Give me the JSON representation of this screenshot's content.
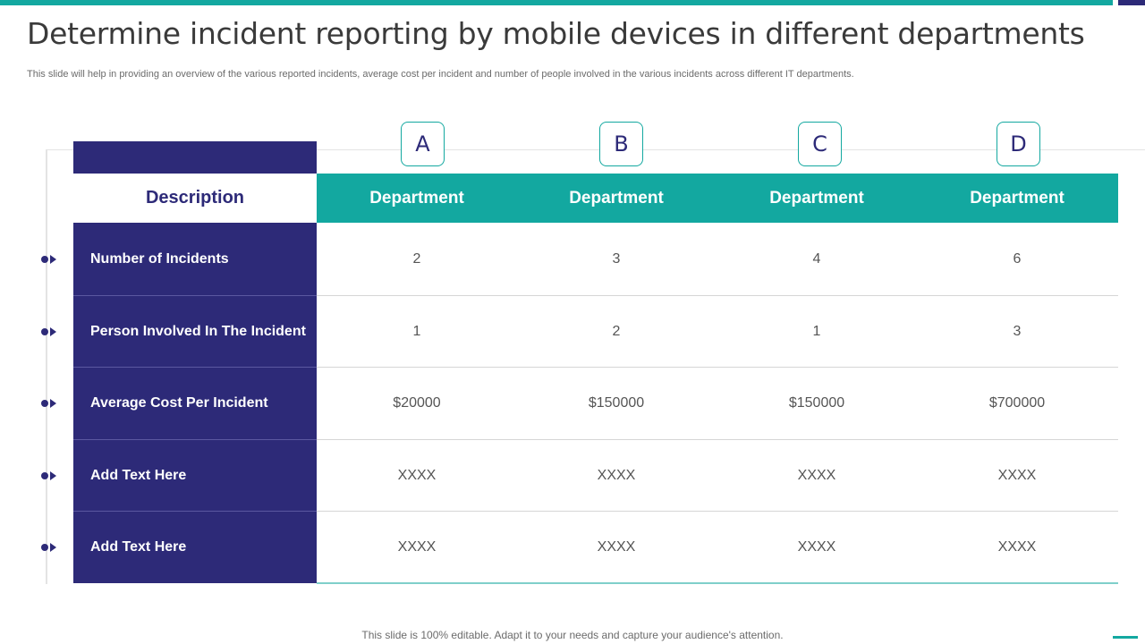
{
  "title": "Determine incident reporting by mobile devices in different departments",
  "subtitle": "This slide will help in providing an overview  of the various reported incidents, average cost per incident and  number of people involved in the various incidents across different IT departments.",
  "colors": {
    "navy": "#2d2a78",
    "teal": "#13a8a0"
  },
  "table": {
    "description_header": "Description",
    "departments": [
      {
        "letter": "A",
        "label": "Department"
      },
      {
        "letter": "B",
        "label": "Department"
      },
      {
        "letter": "C",
        "label": "Department"
      },
      {
        "letter": "D",
        "label": "Department"
      }
    ],
    "rows": [
      {
        "label": "Number of Incidents",
        "values": [
          "2",
          "3",
          "4",
          "6"
        ]
      },
      {
        "label": "Person  Involved In The Incident",
        "values": [
          "1",
          "2",
          "1",
          "3"
        ]
      },
      {
        "label": "Average Cost  Per Incident",
        "values": [
          "$20000",
          "$150000",
          "$150000",
          "$700000"
        ]
      },
      {
        "label": "Add Text Here",
        "values": [
          "XXXX",
          "XXXX",
          "XXXX",
          "XXXX"
        ]
      },
      {
        "label": "Add Text Here",
        "values": [
          "XXXX",
          "XXXX",
          "XXXX",
          "XXXX"
        ]
      }
    ]
  },
  "footer": "This slide is 100% editable. Adapt it to your needs and capture your audience's attention."
}
